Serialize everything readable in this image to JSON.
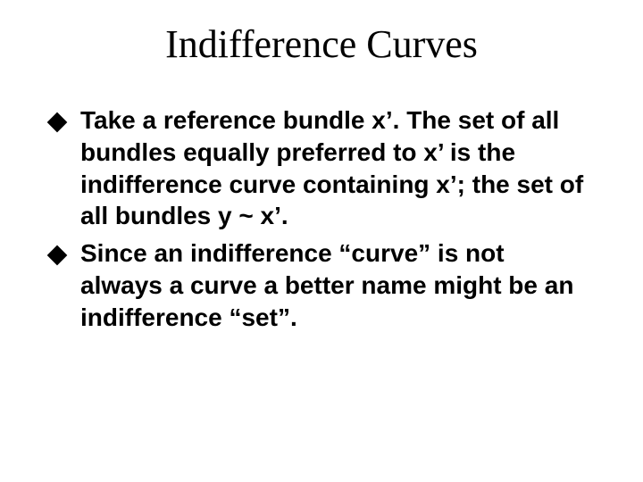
{
  "slide": {
    "title": "Indifference Curves",
    "title_font_family": "Times New Roman",
    "title_font_size_pt": 44,
    "title_font_weight": 400,
    "title_color": "#000000",
    "body_font_family": "Arial",
    "body_font_size_pt": 28,
    "body_font_weight": 700,
    "body_color": "#000000",
    "background_color": "#ffffff",
    "bullet_marker": "diamond",
    "bullet_marker_color": "#000000",
    "bullets": [
      {
        "text": "Take a reference bundle x’.  The set of all bundles equally preferred to x’ is the indifference curve containing x’; the set of all bundles y ~ x’."
      },
      {
        "text": "Since an indifference “curve” is not always a curve a better name might be an indifference “set”."
      }
    ]
  }
}
